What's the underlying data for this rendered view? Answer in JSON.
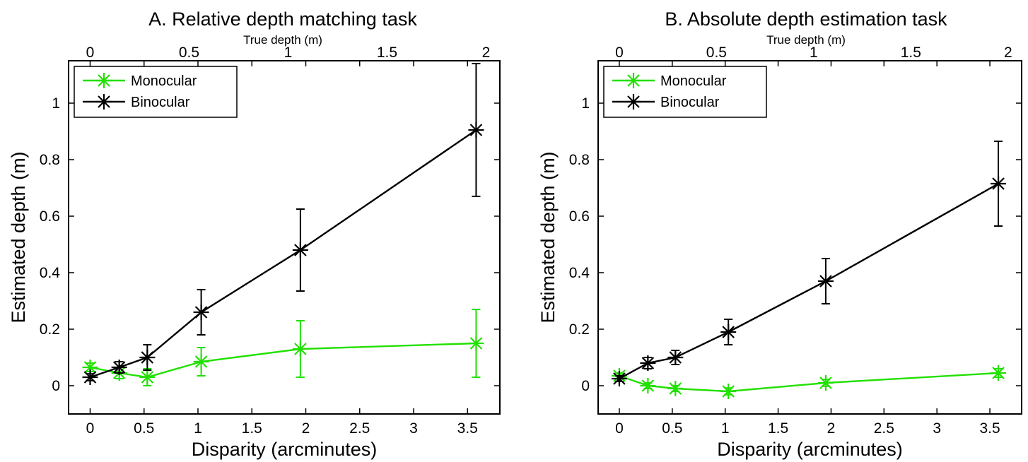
{
  "chart_data": [
    {
      "type": "line",
      "title": "A. Relative depth matching task",
      "top_axis_label": "True depth (m)",
      "top_axis_ticks": [
        0,
        0.5,
        1,
        1.5,
        2
      ],
      "xlabel": "Disparity (arcminutes)",
      "ylabel": "Estimated depth (m)",
      "xlim": [
        -0.2,
        3.8
      ],
      "ylim": [
        -0.1,
        1.15
      ],
      "x_ticks": [
        0,
        0.5,
        1,
        1.5,
        2,
        2.5,
        3,
        3.5
      ],
      "y_ticks": [
        0,
        0.2,
        0.4,
        0.6,
        0.8,
        1
      ],
      "grid": false,
      "legend_position": "top-left",
      "series": [
        {
          "name": "Monocular",
          "color": "#22e000",
          "x": [
            0,
            0.27,
            0.53,
            1.03,
            1.95,
            3.58
          ],
          "y": [
            0.065,
            0.045,
            0.03,
            0.085,
            0.13,
            0.15
          ],
          "err": [
            0.015,
            0.02,
            0.03,
            0.05,
            0.1,
            0.12
          ]
        },
        {
          "name": "Binocular",
          "color": "#000000",
          "x": [
            0,
            0.27,
            0.53,
            1.03,
            1.95,
            3.58
          ],
          "y": [
            0.03,
            0.065,
            0.1,
            0.26,
            0.48,
            0.905
          ],
          "err": [
            0.012,
            0.02,
            0.045,
            0.08,
            0.145,
            0.235
          ]
        }
      ]
    },
    {
      "type": "line",
      "title": "B. Absolute depth estimation task",
      "top_axis_label": "True depth (m)",
      "top_axis_ticks": [
        0,
        0.5,
        1,
        1.5,
        2
      ],
      "xlabel": "Disparity (arcminutes)",
      "ylabel": "Estimated depth (m)",
      "xlim": [
        -0.2,
        3.8
      ],
      "ylim": [
        -0.1,
        1.15
      ],
      "x_ticks": [
        0,
        0.5,
        1,
        1.5,
        2,
        2.5,
        3,
        3.5
      ],
      "y_ticks": [
        0,
        0.2,
        0.4,
        0.6,
        0.8,
        1
      ],
      "grid": false,
      "legend_position": "top-left",
      "series": [
        {
          "name": "Monocular",
          "color": "#22e000",
          "x": [
            0,
            0.27,
            0.53,
            1.03,
            1.95,
            3.58
          ],
          "y": [
            0.035,
            0.0,
            -0.01,
            -0.02,
            0.01,
            0.045
          ],
          "err": [
            0.01,
            0.01,
            0.01,
            0.012,
            0.012,
            0.015
          ]
        },
        {
          "name": "Binocular",
          "color": "#000000",
          "x": [
            0,
            0.27,
            0.53,
            1.03,
            1.95,
            3.58
          ],
          "y": [
            0.025,
            0.08,
            0.1,
            0.19,
            0.37,
            0.715
          ],
          "err": [
            0.01,
            0.02,
            0.025,
            0.045,
            0.08,
            0.15
          ]
        }
      ]
    }
  ]
}
